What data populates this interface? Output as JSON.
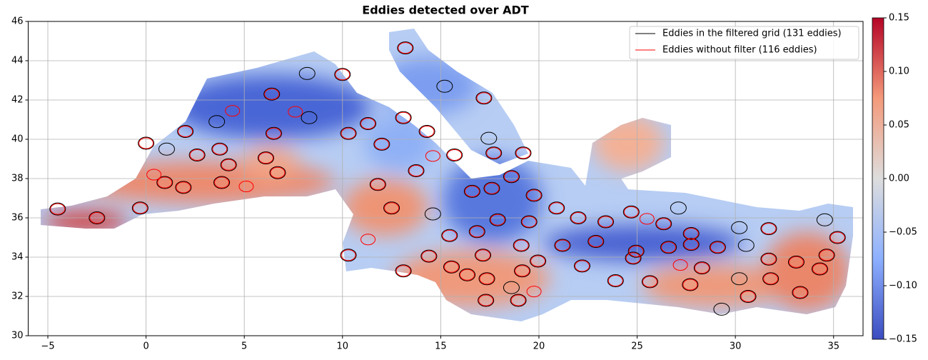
{
  "chart_data": {
    "type": "eddy-map",
    "title": "Eddies detected over ADT",
    "xlim": [
      -6,
      36.5
    ],
    "ylim": [
      30,
      46
    ],
    "xticks": [
      {
        "value": -5,
        "label": "−5"
      },
      0,
      5,
      10,
      15,
      20,
      25,
      30,
      35
    ],
    "yticks": [
      30,
      32,
      34,
      36,
      38,
      40,
      42,
      44,
      46
    ],
    "grid": true,
    "legend": "upper right",
    "colorbar": {
      "clim": [
        -0.15,
        0.15
      ],
      "ticks": [
        {
          "value": -0.15,
          "label": "−0.15"
        },
        {
          "value": -0.1,
          "label": "−0.10"
        },
        {
          "value": -0.05,
          "label": "−0.05"
        },
        {
          "value": 0,
          "label": "0.00"
        },
        0.05,
        {
          "value": 0.1,
          "label": "0.10"
        },
        0.15
      ],
      "colors": [
        "#3b4cc0",
        "#8db0fe",
        "#dddddd",
        "#f49a7b",
        "#b40426"
      ]
    },
    "series": [
      {
        "name": "Eddies in the filtered grid (131 eddies)",
        "color": "#000000",
        "x": [
          13.2,
          15.2,
          17.2,
          10.0,
          8.2,
          6.4,
          3.6,
          2.0,
          0.0,
          1.05,
          2.6,
          3.75,
          4.2,
          6.1,
          6.7,
          1.9,
          0.95,
          -0.3,
          -2.5,
          -4.5,
          3.85,
          6.5,
          8.3,
          10.3,
          11.3,
          13.1,
          14.3,
          12.0,
          13.75,
          15.7,
          17.7,
          19.2,
          17.45,
          18.6,
          19.75,
          16.6,
          17.6,
          11.8,
          12.5,
          14.6,
          15.45,
          17.9,
          16.85,
          19.5,
          20.9,
          22.0,
          23.4,
          24.7,
          27.1,
          26.35,
          27.75,
          30.2,
          31.7,
          34.55,
          35.2,
          21.2,
          22.9,
          24.95,
          26.6,
          27.75,
          29.1,
          30.55,
          31.7,
          34.65,
          33.1,
          34.3,
          33.3,
          31.8,
          30.65,
          27.7,
          25.65,
          23.9,
          22.2,
          19.95,
          19.15,
          19.1,
          17.35,
          17.3,
          16.35,
          15.55,
          14.4,
          10.3,
          13.1,
          17.15,
          18.6,
          18.95,
          29.3,
          28.3,
          30.2,
          24.8
        ],
        "y": [
          44.65,
          42.7,
          42.1,
          43.3,
          43.35,
          42.3,
          40.9,
          40.4,
          39.8,
          39.5,
          39.2,
          39.5,
          38.7,
          39.05,
          38.3,
          37.55,
          37.8,
          36.5,
          36.0,
          36.45,
          37.8,
          40.3,
          41.1,
          40.3,
          40.8,
          41.1,
          40.4,
          39.75,
          38.4,
          39.2,
          39.3,
          39.3,
          40.05,
          38.1,
          37.15,
          37.35,
          37.5,
          37.7,
          36.5,
          36.2,
          35.1,
          35.9,
          35.3,
          35.8,
          36.5,
          36.0,
          35.8,
          36.3,
          36.5,
          35.7,
          35.2,
          35.5,
          35.45,
          35.9,
          35.0,
          34.6,
          34.8,
          34.3,
          34.5,
          34.65,
          34.5,
          34.6,
          33.9,
          34.1,
          33.75,
          33.4,
          32.2,
          32.9,
          32.0,
          32.6,
          32.75,
          32.8,
          33.55,
          33.8,
          33.3,
          34.6,
          32.9,
          31.8,
          33.1,
          33.5,
          34.05,
          34.1,
          33.3,
          34.1,
          32.45,
          31.8,
          31.35,
          33.45,
          32.9,
          33.95
        ]
      },
      {
        "name": "Eddies without filter (116 eddies)",
        "color": "#ff0000",
        "x": [
          13.2,
          17.2,
          10.0,
          6.4,
          4.4,
          2.0,
          0.0,
          2.6,
          3.75,
          4.2,
          6.1,
          6.7,
          1.9,
          0.95,
          0.4,
          -0.3,
          -2.5,
          -4.5,
          3.85,
          5.1,
          6.5,
          7.6,
          10.3,
          11.3,
          13.1,
          14.3,
          12.0,
          13.75,
          15.7,
          14.6,
          17.7,
          19.2,
          18.6,
          19.75,
          16.6,
          17.6,
          11.8,
          12.5,
          15.45,
          17.9,
          16.85,
          19.5,
          20.9,
          22.0,
          23.4,
          24.7,
          26.35,
          25.5,
          27.75,
          31.7,
          35.2,
          21.2,
          22.9,
          24.95,
          26.6,
          27.75,
          29.1,
          31.7,
          34.65,
          33.1,
          34.3,
          33.3,
          31.8,
          30.65,
          27.7,
          25.65,
          23.9,
          22.2,
          19.95,
          19.15,
          19.1,
          17.35,
          17.3,
          16.35,
          15.55,
          14.4,
          10.3,
          11.3,
          13.1,
          17.15,
          18.95,
          19.75,
          28.3,
          27.2,
          24.8
        ],
        "y": [
          44.65,
          42.1,
          43.3,
          42.3,
          41.45,
          40.4,
          39.8,
          39.2,
          39.5,
          38.7,
          39.05,
          38.3,
          37.55,
          37.8,
          38.2,
          36.5,
          36.0,
          36.45,
          37.8,
          37.6,
          40.3,
          41.4,
          40.3,
          40.8,
          41.1,
          40.4,
          39.75,
          38.4,
          39.2,
          39.15,
          39.3,
          39.3,
          38.1,
          37.15,
          37.35,
          37.5,
          37.7,
          36.5,
          35.1,
          35.9,
          35.3,
          35.8,
          36.5,
          36.0,
          35.8,
          36.3,
          35.7,
          35.95,
          35.2,
          35.45,
          35.0,
          34.6,
          34.8,
          34.3,
          34.5,
          34.65,
          34.5,
          33.9,
          34.1,
          33.75,
          33.4,
          32.2,
          32.9,
          32.0,
          32.6,
          32.75,
          32.8,
          33.55,
          33.8,
          33.3,
          34.6,
          32.9,
          31.8,
          33.1,
          33.5,
          34.05,
          34.1,
          34.9,
          33.3,
          34.1,
          31.8,
          32.25,
          33.45,
          33.6,
          33.95
        ]
      }
    ]
  }
}
